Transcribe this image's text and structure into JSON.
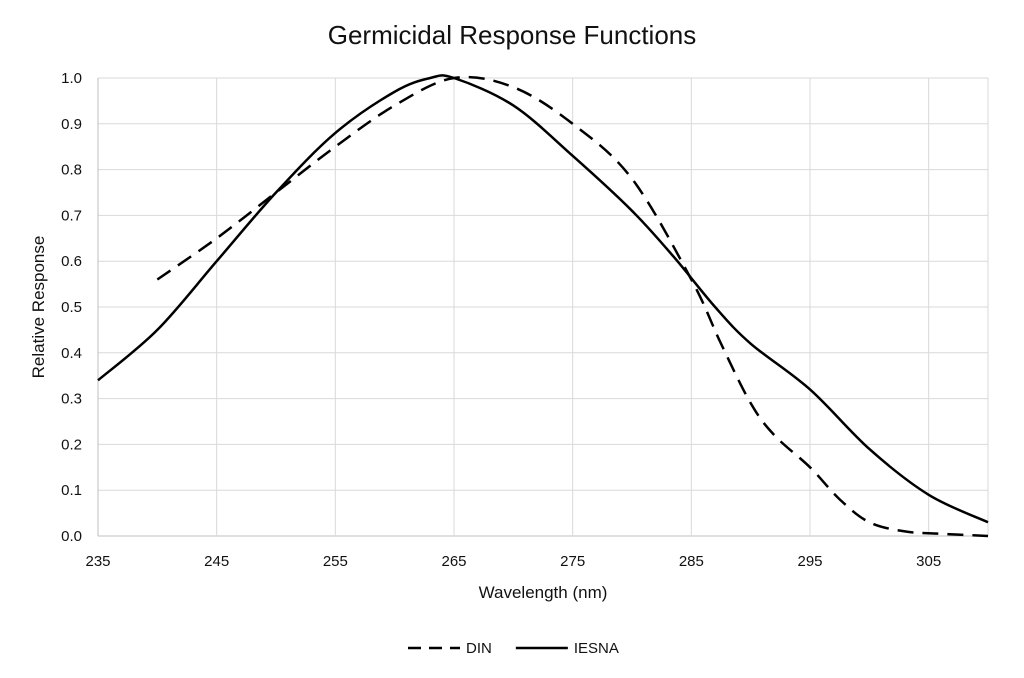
{
  "chart_data": {
    "type": "line",
    "title": "Germicidal Response Functions",
    "xlabel": "Wavelength (nm)",
    "ylabel": "Relative Response",
    "xlim": [
      235,
      310
    ],
    "ylim": [
      0,
      1
    ],
    "x_ticks": [
      235,
      245,
      255,
      265,
      275,
      285,
      295,
      305
    ],
    "x_tick_labels": [
      "235",
      "245",
      "255",
      "265",
      "275",
      "285",
      "295",
      "305"
    ],
    "y_ticks": [
      0,
      0.1,
      0.2,
      0.3,
      0.4,
      0.5,
      0.6,
      0.7,
      0.8,
      0.9,
      1.0
    ],
    "y_tick_labels": [
      "0.0",
      "0.1",
      "0.2",
      "0.3",
      "0.4",
      "0.5",
      "0.6",
      "0.7",
      "0.8",
      "0.9",
      "1.0"
    ],
    "grid": true,
    "legend_position": "bottom",
    "series": [
      {
        "name": "DIN",
        "style": "dashed",
        "color": "#000000",
        "x": [
          240,
          245,
          250,
          255,
          260,
          265,
          270,
          275,
          280,
          285,
          287.5,
          290,
          292,
          295,
          297.5,
          300,
          303,
          306,
          310
        ],
        "y": [
          0.56,
          0.65,
          0.75,
          0.85,
          0.94,
          1.0,
          0.98,
          0.9,
          0.78,
          0.56,
          0.42,
          0.29,
          0.22,
          0.15,
          0.08,
          0.03,
          0.01,
          0.005,
          0.0
        ]
      },
      {
        "name": "IESNA",
        "style": "solid",
        "color": "#000000",
        "x": [
          235,
          240,
          245,
          250,
          255,
          260,
          263,
          265,
          270,
          275,
          280,
          283.5,
          287,
          290,
          295,
          300,
          305,
          310
        ],
        "y": [
          0.34,
          0.45,
          0.6,
          0.75,
          0.88,
          0.97,
          1.0,
          1.0,
          0.94,
          0.83,
          0.71,
          0.61,
          0.5,
          0.42,
          0.32,
          0.19,
          0.09,
          0.03
        ]
      }
    ]
  }
}
